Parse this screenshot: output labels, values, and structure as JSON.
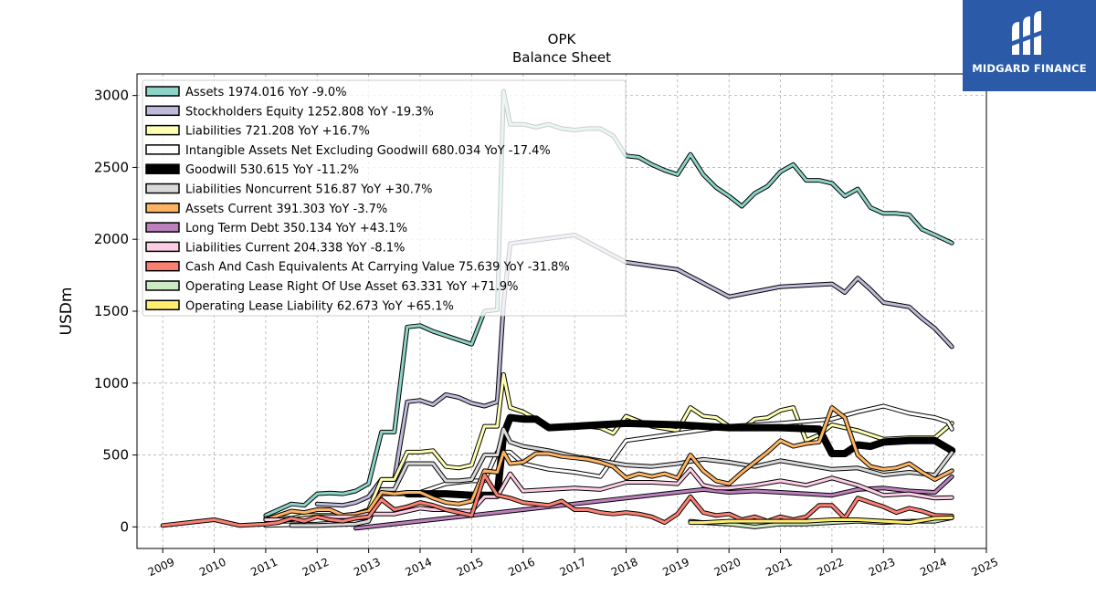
{
  "brand": {
    "name": "MIDGARD FINANCE",
    "bg_color": "#2a5aa8"
  },
  "chart_data": {
    "type": "line",
    "title": "OPK",
    "subtitle": "Balance  Sheet",
    "xlabel": "",
    "ylabel": "USDm",
    "xlim": [
      2008.5,
      2025
    ],
    "ylim": [
      -150,
      3150
    ],
    "x_ticks": [
      2009,
      2010,
      2011,
      2012,
      2013,
      2014,
      2015,
      2016,
      2017,
      2018,
      2019,
      2020,
      2021,
      2022,
      2023,
      2024,
      2025
    ],
    "y_ticks": [
      0,
      500,
      1000,
      1500,
      2000,
      2500,
      3000
    ],
    "grid": true,
    "legend_position": "top-left",
    "series": [
      {
        "name": "Assets",
        "legend": "Assets  1974.016 YoY -9.0%",
        "color": "#8dd3c7",
        "x": [
          2011.0,
          2011.5,
          2011.75,
          2012.0,
          2012.25,
          2012.5,
          2012.75,
          2013.0,
          2013.25,
          2013.5,
          2013.75,
          2014.0,
          2014.25,
          2014.5,
          2014.75,
          2015.0,
          2015.25,
          2015.5,
          2015.62,
          2015.75,
          2016.0,
          2016.25,
          2016.5,
          2016.75,
          2017.0,
          2017.25,
          2017.5,
          2017.75,
          2018.0,
          2018.25,
          2018.5,
          2018.75,
          2019.0,
          2019.25,
          2019.5,
          2019.75,
          2020.0,
          2020.25,
          2020.5,
          2020.75,
          2021.0,
          2021.25,
          2021.5,
          2021.75,
          2022.0,
          2022.25,
          2022.5,
          2022.75,
          2023.0,
          2023.25,
          2023.5,
          2023.75,
          2024.0,
          2024.33
        ],
        "y": [
          80,
          160,
          150,
          230,
          235,
          230,
          250,
          300,
          660,
          660,
          1390,
          1400,
          1360,
          1330,
          1300,
          1270,
          1500,
          1510,
          3030,
          2800,
          2800,
          2780,
          2800,
          2770,
          2760,
          2770,
          2770,
          2720,
          2580,
          2570,
          2520,
          2480,
          2450,
          2590,
          2450,
          2360,
          2300,
          2230,
          2320,
          2370,
          2470,
          2520,
          2410,
          2410,
          2390,
          2300,
          2350,
          2220,
          2180,
          2180,
          2170,
          2070,
          2030,
          1974
        ]
      },
      {
        "name": "Stockholders Equity",
        "legend": "Stockholders Equity  1252.808 YoY -19.3%",
        "color": "#bebada",
        "x": [
          2012.0,
          2012.5,
          2012.75,
          2013.0,
          2013.25,
          2013.5,
          2013.75,
          2014.0,
          2014.25,
          2014.5,
          2014.75,
          2015.0,
          2015.25,
          2015.5,
          2015.62,
          2015.75,
          2017.0,
          2018.0,
          2019.0,
          2020.0,
          2021.0,
          2022.0,
          2022.25,
          2022.5,
          2022.75,
          2023.0,
          2023.5,
          2023.75,
          2024.0,
          2024.33
        ],
        "y": [
          160,
          150,
          170,
          210,
          330,
          330,
          870,
          880,
          850,
          920,
          900,
          860,
          840,
          870,
          1550,
          1970,
          2030,
          1840,
          1790,
          1600,
          1670,
          1690,
          1630,
          1730,
          1650,
          1560,
          1530,
          1450,
          1380,
          1253
        ]
      },
      {
        "name": "Liabilities",
        "legend": "Liabilities  721.208 YoY +16.7%",
        "color": "#ffffb3",
        "x": [
          2011.0,
          2011.5,
          2011.75,
          2012.0,
          2012.5,
          2012.75,
          2013.0,
          2013.25,
          2013.5,
          2013.75,
          2014.0,
          2014.25,
          2014.5,
          2014.75,
          2015.0,
          2015.25,
          2015.5,
          2015.62,
          2015.75,
          2016.0,
          2016.5,
          2017.0,
          2017.25,
          2017.5,
          2017.75,
          2018.0,
          2018.5,
          2019.0,
          2019.25,
          2019.5,
          2019.75,
          2020.0,
          2020.25,
          2020.5,
          2020.75,
          2021.0,
          2021.25,
          2021.5,
          2021.75,
          2022.0,
          2022.5,
          2023.0,
          2023.5,
          2024.0,
          2024.33
        ],
        "y": [
          60,
          60,
          80,
          80,
          80,
          90,
          120,
          330,
          330,
          520,
          520,
          530,
          420,
          410,
          430,
          700,
          700,
          1060,
          830,
          800,
          700,
          690,
          700,
          690,
          650,
          770,
          700,
          670,
          830,
          770,
          760,
          700,
          680,
          750,
          760,
          810,
          830,
          600,
          640,
          710,
          670,
          610,
          620,
          620,
          721
        ]
      },
      {
        "name": "Intangible Assets Net Excluding Goodwill",
        "legend": "Intangible Assets Net Excluding Goodwill  680.034 YoY -17.4%",
        "color": "#ffffff",
        "x": [
          2011.0,
          2012.0,
          2013.0,
          2013.25,
          2013.75,
          2014.0,
          2014.5,
          2015.0,
          2015.25,
          2015.5,
          2015.75,
          2016.0,
          2016.5,
          2017.0,
          2017.5,
          2018.0,
          2019.0,
          2020.0,
          2021.0,
          2022.0,
          2022.5,
          2023.0,
          2023.5,
          2024.0,
          2024.25,
          2024.33
        ],
        "y": [
          10,
          20,
          40,
          230,
          230,
          240,
          300,
          320,
          320,
          520,
          520,
          440,
          400,
          380,
          350,
          600,
          650,
          700,
          720,
          750,
          800,
          840,
          790,
          760,
          730,
          680
        ]
      },
      {
        "name": "Goodwill",
        "legend": "Goodwill  530.615 YoY -11.2%",
        "color": "#000000",
        "x": [
          2013.75,
          2014.5,
          2015.0,
          2015.25,
          2015.5,
          2015.62,
          2015.75,
          2016.0,
          2016.25,
          2016.5,
          2017.0,
          2018.0,
          2019.0,
          2020.0,
          2021.0,
          2021.75,
          2022.0,
          2022.25,
          2022.5,
          2022.75,
          2023.0,
          2023.5,
          2024.0,
          2024.33
        ],
        "y": [
          230,
          230,
          220,
          220,
          220,
          640,
          760,
          750,
          750,
          690,
          700,
          720,
          710,
          690,
          690,
          680,
          510,
          510,
          570,
          560,
          590,
          600,
          600,
          531
        ]
      },
      {
        "name": "Liabilities Noncurrent",
        "legend": "Liabilities Noncurrent  516.87 YoY +30.7%",
        "color": "#d9d9d9",
        "x": [
          2011.5,
          2012.0,
          2012.75,
          2013.0,
          2013.25,
          2013.5,
          2013.75,
          2014.0,
          2014.25,
          2014.5,
          2014.75,
          2015.0,
          2015.25,
          2015.5,
          2015.62,
          2015.75,
          2016.0,
          2016.5,
          2017.0,
          2017.5,
          2018.0,
          2018.5,
          2019.0,
          2019.5,
          2020.0,
          2020.5,
          2021.0,
          2021.5,
          2022.0,
          2022.5,
          2023.0,
          2023.5,
          2024.0,
          2024.33
        ],
        "y": [
          10,
          10,
          20,
          40,
          260,
          260,
          440,
          440,
          440,
          320,
          320,
          330,
          500,
          500,
          680,
          590,
          560,
          530,
          490,
          460,
          430,
          420,
          440,
          470,
          450,
          420,
          460,
          430,
          400,
          410,
          360,
          380,
          360,
          517
        ]
      },
      {
        "name": "Assets Current",
        "legend": "Assets Current  391.303 YoY -3.7%",
        "color": "#fdb462",
        "x": [
          2011.0,
          2011.5,
          2011.75,
          2012.0,
          2012.25,
          2012.5,
          2012.75,
          2013.0,
          2013.25,
          2013.5,
          2013.75,
          2014.0,
          2014.25,
          2014.5,
          2014.75,
          2015.0,
          2015.25,
          2015.5,
          2015.62,
          2015.75,
          2016.0,
          2016.25,
          2016.5,
          2016.75,
          2017.0,
          2017.25,
          2017.5,
          2017.75,
          2018.0,
          2018.25,
          2018.5,
          2018.75,
          2019.0,
          2019.25,
          2019.5,
          2019.75,
          2020.0,
          2020.25,
          2020.5,
          2020.75,
          2021.0,
          2021.25,
          2021.5,
          2021.75,
          2022.0,
          2022.25,
          2022.5,
          2022.75,
          2023.0,
          2023.25,
          2023.5,
          2023.75,
          2024.0,
          2024.33
        ],
        "y": [
          50,
          110,
          100,
          120,
          120,
          80,
          90,
          110,
          240,
          230,
          240,
          240,
          200,
          170,
          160,
          180,
          390,
          380,
          520,
          440,
          450,
          510,
          510,
          490,
          480,
          470,
          450,
          420,
          340,
          370,
          350,
          370,
          340,
          500,
          390,
          320,
          300,
          380,
          450,
          520,
          600,
          560,
          580,
          590,
          830,
          760,
          500,
          420,
          400,
          410,
          440,
          380,
          330,
          391
        ]
      },
      {
        "name": "Long Term Debt",
        "legend": "Long Term Debt  350.134 YoY +43.1%",
        "color": "#bc80bd",
        "x": [
          2012.75,
          2014.5,
          2015.0,
          2016.0,
          2017.0,
          2018.0,
          2019.0,
          2019.5,
          2020.0,
          2020.5,
          2021.0,
          2021.5,
          2022.0,
          2022.5,
          2023.0,
          2023.5,
          2024.0,
          2024.33
        ],
        "y": [
          -10,
          60,
          80,
          120,
          160,
          200,
          240,
          260,
          240,
          250,
          240,
          230,
          220,
          260,
          270,
          250,
          240,
          350
        ]
      },
      {
        "name": "Liabilities Current",
        "legend": "Liabilities Current  204.338 YoY -8.1%",
        "color": "#fccde5",
        "x": [
          2011.0,
          2011.5,
          2011.75,
          2012.0,
          2012.5,
          2012.75,
          2013.0,
          2013.25,
          2013.5,
          2013.75,
          2014.0,
          2014.25,
          2014.5,
          2014.75,
          2015.0,
          2015.25,
          2015.5,
          2015.75,
          2016.0,
          2016.5,
          2017.0,
          2017.5,
          2018.0,
          2018.5,
          2019.0,
          2019.25,
          2019.5,
          2019.75,
          2020.0,
          2020.5,
          2021.0,
          2021.5,
          2022.0,
          2022.5,
          2023.0,
          2023.5,
          2024.0,
          2024.33
        ],
        "y": [
          50,
          50,
          60,
          70,
          70,
          70,
          90,
          90,
          90,
          110,
          130,
          120,
          120,
          110,
          110,
          210,
          210,
          370,
          250,
          260,
          270,
          260,
          310,
          310,
          300,
          400,
          290,
          270,
          270,
          290,
          320,
          290,
          340,
          290,
          220,
          230,
          200,
          204
        ]
      },
      {
        "name": "Cash And Cash Equivalents At Carrying Value",
        "legend": "Cash And Cash Equivalents At Carrying Value  75.639 YoY -31.8%",
        "color": "#fb8072",
        "x": [
          2009.0,
          2009.5,
          2010.0,
          2010.5,
          2011.0,
          2011.25,
          2011.5,
          2011.75,
          2012.0,
          2012.25,
          2012.5,
          2012.75,
          2013.0,
          2013.25,
          2013.5,
          2013.75,
          2014.0,
          2014.25,
          2014.5,
          2014.75,
          2015.0,
          2015.25,
          2015.5,
          2015.75,
          2016.0,
          2016.25,
          2016.5,
          2016.75,
          2017.0,
          2017.25,
          2017.5,
          2017.75,
          2018.0,
          2018.25,
          2018.5,
          2018.75,
          2019.0,
          2019.25,
          2019.5,
          2019.75,
          2020.0,
          2020.25,
          2020.5,
          2020.75,
          2021.0,
          2021.25,
          2021.5,
          2021.75,
          2022.0,
          2022.25,
          2022.5,
          2022.75,
          2023.0,
          2023.25,
          2023.5,
          2023.75,
          2024.0,
          2024.33
        ],
        "y": [
          10,
          30,
          50,
          10,
          20,
          30,
          60,
          40,
          70,
          50,
          40,
          60,
          70,
          190,
          120,
          140,
          170,
          150,
          120,
          100,
          80,
          360,
          220,
          200,
          170,
          160,
          150,
          180,
          120,
          120,
          100,
          90,
          100,
          90,
          70,
          30,
          90,
          210,
          100,
          80,
          90,
          50,
          70,
          40,
          70,
          50,
          70,
          150,
          150,
          60,
          200,
          170,
          140,
          100,
          130,
          110,
          80,
          76
        ]
      },
      {
        "name": "Operating Lease Right Of Use Asset",
        "legend": "Operating Lease Right Of Use Asset  63.331 YoY +71.9%",
        "color": "#ccebc5",
        "x": [
          2019.25,
          2019.5,
          2020.0,
          2020.25,
          2020.5,
          2021.0,
          2021.5,
          2022.0,
          2022.5,
          2023.0,
          2023.5,
          2024.0,
          2024.33
        ],
        "y": [
          40,
          30,
          20,
          10,
          0,
          20,
          20,
          30,
          40,
          30,
          40,
          40,
          63
        ]
      },
      {
        "name": "Operating Lease Liability",
        "legend": "Operating Lease Liability  62.673 YoY +65.1%",
        "color": "#ffed6f",
        "x": [
          2019.25,
          2019.5,
          2020.0,
          2020.5,
          2021.0,
          2021.5,
          2022.0,
          2022.5,
          2023.0,
          2023.5,
          2024.0,
          2024.33
        ],
        "y": [
          30,
          30,
          40,
          40,
          40,
          40,
          50,
          50,
          40,
          30,
          60,
          63
        ]
      }
    ]
  }
}
